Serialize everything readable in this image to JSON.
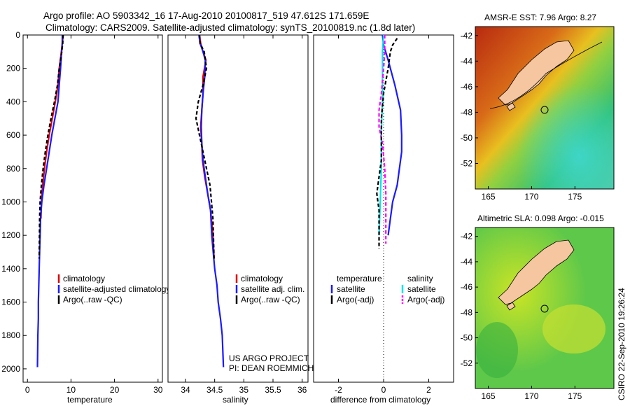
{
  "header": {
    "line1": "Argo profile: AO 5903342_16 17-Aug-2010 20100817_519 47.612S 171.659E",
    "line2": "Climatology: CARS2009. Satellite-adjusted climatology: synTS_20100819.nc (1.8d later)"
  },
  "side_stamp": "CSIRO 22-Sep-2010 19:26:24",
  "colors": {
    "red": "#dd0000",
    "blue": "#1a1aff",
    "black": "#000000",
    "cyan": "#00e5ee",
    "magenta": "#ff00ff"
  },
  "chart_data": [
    {
      "type": "line",
      "xlabel": "temperature",
      "xlim": [
        -1,
        31
      ],
      "ylim": [
        2080,
        0
      ],
      "xticks": [
        0,
        10,
        20,
        30
      ],
      "yticks": [
        0,
        200,
        400,
        600,
        800,
        1000,
        1200,
        1400,
        1600,
        1800,
        2000
      ],
      "legend": [
        "climatology",
        "satellite-adjusted climatology",
        "Argo(..raw -QC)"
      ],
      "series": [
        {
          "name": "climatology",
          "color": "red",
          "dash": false,
          "x": [
            8.2,
            8.0,
            7.7,
            7.3,
            7.0,
            6.4,
            5.7,
            5.0,
            4.4,
            3.9,
            3.5,
            3.2,
            3.1
          ],
          "y": [
            0,
            50,
            120,
            200,
            300,
            400,
            500,
            600,
            700,
            800,
            900,
            1000,
            1100
          ]
        },
        {
          "name": "satellite-adjusted climatology",
          "color": "blue",
          "dash": false,
          "x": [
            8.0,
            8.0,
            7.8,
            7.6,
            7.3,
            7.0,
            6.3,
            5.6,
            5.0,
            4.4,
            3.8,
            3.3,
            3.0,
            2.9,
            2.8,
            2.7,
            2.6,
            2.5,
            2.5,
            2.4,
            2.3
          ],
          "y": [
            0,
            50,
            120,
            200,
            300,
            400,
            500,
            600,
            700,
            800,
            900,
            1000,
            1100,
            1200,
            1300,
            1400,
            1500,
            1600,
            1700,
            1800,
            1990
          ]
        },
        {
          "name": "Argo(..raw -QC)",
          "color": "black",
          "dash": true,
          "x": [
            8.2,
            8.1,
            7.8,
            7.3,
            6.9,
            6.2,
            5.4,
            4.7,
            4.1,
            3.6,
            3.2,
            2.9,
            2.8,
            2.7
          ],
          "y": [
            0,
            50,
            120,
            200,
            300,
            400,
            500,
            600,
            700,
            800,
            900,
            1000,
            1100,
            1340
          ]
        }
      ]
    },
    {
      "type": "line",
      "xlabel": "salinity",
      "xlim": [
        33.7,
        36.1
      ],
      "ylim": [
        2080,
        0
      ],
      "xticks": [
        34,
        34.5,
        35,
        35.5,
        36
      ],
      "yticks": [],
      "legend": [
        "climatology",
        "satellite adj. clim.",
        "Argo(..raw -QC)"
      ],
      "series": [
        {
          "name": "climatology",
          "color": "red",
          "dash": false,
          "x": [
            34.24,
            34.26,
            34.3,
            34.35,
            34.3,
            34.3,
            34.28,
            34.26,
            34.28,
            34.29,
            34.33,
            34.38,
            34.43,
            34.47,
            34.49
          ],
          "y": [
            0,
            50,
            100,
            150,
            250,
            350,
            450,
            550,
            650,
            750,
            850,
            950,
            1050,
            1200,
            1340
          ]
        },
        {
          "name": "satellite adj. clim.",
          "color": "blue",
          "dash": false,
          "x": [
            34.23,
            34.25,
            34.3,
            34.34,
            34.33,
            34.3,
            34.28,
            34.27,
            34.28,
            34.3,
            34.34,
            34.38,
            34.43,
            34.45,
            34.5,
            34.54,
            34.56,
            34.6,
            34.63,
            34.65
          ],
          "y": [
            0,
            50,
            100,
            150,
            250,
            350,
            450,
            550,
            650,
            750,
            850,
            950,
            1050,
            1200,
            1400,
            1500,
            1600,
            1700,
            1800,
            1990
          ]
        },
        {
          "name": "Argo(..raw -QC)",
          "color": "black",
          "dash": true,
          "x": [
            34.24,
            34.25,
            34.32,
            34.36,
            34.3,
            34.22,
            34.18,
            34.24,
            34.3,
            34.36,
            34.42,
            34.47,
            34.49
          ],
          "y": [
            0,
            50,
            100,
            200,
            300,
            400,
            500,
            600,
            700,
            800,
            900,
            1100,
            1340
          ]
        }
      ]
    },
    {
      "type": "line",
      "xlabel": "difference from climatology",
      "xlim": [
        -3.1,
        3.1
      ],
      "ylim": [
        2080,
        0
      ],
      "xticks": [
        -2,
        0,
        2
      ],
      "yticks": [],
      "legend_temperature": [
        "temperature",
        "satellite",
        "Argo(-adj)"
      ],
      "legend_salinity": [
        "salinity",
        "satellite",
        "Argo(-adj)"
      ],
      "series": [
        {
          "name": "temperature satellite",
          "color": "blue",
          "dash": false,
          "x": [
            -0.05,
            0.0,
            0.2,
            0.5,
            0.75,
            0.8,
            0.8,
            0.7,
            0.6,
            0.4,
            0.3,
            0.2
          ],
          "y": [
            0,
            60,
            150,
            300,
            450,
            600,
            700,
            800,
            900,
            1000,
            1100,
            1200
          ]
        },
        {
          "name": "salinity satellite",
          "color": "cyan",
          "dash": false,
          "x": [
            0.0,
            -0.05,
            -0.05,
            -0.05,
            -0.05,
            -0.08,
            -0.1,
            -0.1,
            -0.1,
            -0.15,
            -0.2
          ],
          "y": [
            0,
            100,
            200,
            300,
            400,
            500,
            600,
            700,
            800,
            1000,
            1200
          ]
        },
        {
          "name": "salinity Argo(-adj)",
          "color": "magenta",
          "dash": true,
          "x": [
            0.05,
            0.05,
            0.0,
            -0.1,
            -0.2,
            -0.2,
            -0.05,
            0.05,
            0.1,
            0.1,
            0.1
          ],
          "y": [
            0,
            100,
            200,
            350,
            450,
            550,
            650,
            800,
            950,
            1100,
            1250
          ]
        },
        {
          "name": "temperature Argo(-adj)",
          "color": "black",
          "dash": true,
          "x": [
            0.6,
            0.4,
            0.3,
            0.2,
            0.0,
            -0.1,
            -0.1,
            -0.1,
            -0.2,
            -0.3,
            -0.2,
            -0.2,
            -0.2
          ],
          "y": [
            20,
            60,
            100,
            200,
            350,
            500,
            600,
            750,
            850,
            950,
            1050,
            1200,
            1280
          ]
        }
      ]
    },
    {
      "type": "heatmap",
      "title_prefix": "AMSR-E SST: 7.96  Argo: 8.27",
      "xticks": [
        165,
        170,
        175
      ],
      "yticks": [
        -42,
        -44,
        -46,
        -48,
        -50,
        -52
      ],
      "xlim": [
        163.5,
        179.5
      ],
      "ylim": [
        -54,
        -41.3
      ]
    },
    {
      "type": "heatmap",
      "title_prefix": "Altimetric SLA: 0.098  Argo: -0.015",
      "xticks": [
        165,
        170,
        175
      ],
      "yticks": [
        -42,
        -44,
        -46,
        -48,
        -50,
        -52
      ],
      "xlim": [
        163.5,
        179.5
      ],
      "ylim": [
        -54,
        -41.3
      ]
    }
  ],
  "credits": {
    "line1": "US ARGO PROJECT",
    "line2": "PI: DEAN ROEMMICH"
  }
}
